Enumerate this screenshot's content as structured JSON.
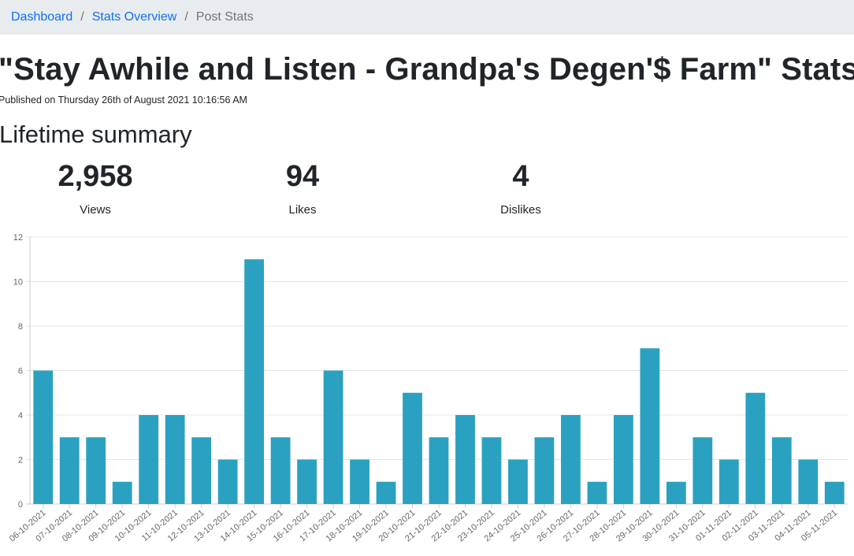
{
  "breadcrumb": {
    "items": [
      {
        "label": "Dashboard",
        "link": true
      },
      {
        "label": "Stats Overview",
        "link": true
      },
      {
        "label": "Post Stats",
        "link": false
      }
    ],
    "separator": "/"
  },
  "page": {
    "title": "\"Stay Awhile and Listen - Grandpa's Degen'$ Farm\" Stats",
    "published": "Published on Thursday 26th of August 2021 10:16:56 AM"
  },
  "summary": {
    "heading": "Lifetime summary",
    "stats": [
      {
        "value": "2,958",
        "label": "Views"
      },
      {
        "value": "94",
        "label": "Likes"
      },
      {
        "value": "4",
        "label": "Dislikes"
      }
    ]
  },
  "colors": {
    "bar": "#2aa1c0",
    "grid": "#e5e5e5",
    "breadcrumb_bg": "#e9ecef",
    "link": "#0d6efd"
  },
  "chart_data": {
    "type": "bar",
    "title": "",
    "xlabel": "",
    "ylabel": "",
    "ylim": [
      0,
      12
    ],
    "yticks": [
      0,
      2,
      4,
      6,
      8,
      10,
      12
    ],
    "grid": true,
    "categories": [
      "06-10-2021",
      "07-10-2021",
      "08-10-2021",
      "09-10-2021",
      "10-10-2021",
      "11-10-2021",
      "12-10-2021",
      "13-10-2021",
      "14-10-2021",
      "15-10-2021",
      "16-10-2021",
      "17-10-2021",
      "18-10-2021",
      "19-10-2021",
      "20-10-2021",
      "21-10-2021",
      "22-10-2021",
      "23-10-2021",
      "24-10-2021",
      "25-10-2021",
      "26-10-2021",
      "27-10-2021",
      "28-10-2021",
      "29-10-2021",
      "30-10-2021",
      "31-10-2021",
      "01-11-2021",
      "02-11-2021",
      "03-11-2021",
      "04-11-2021",
      "05-11-2021"
    ],
    "values": [
      6,
      3,
      3,
      1,
      4,
      4,
      3,
      2,
      11,
      3,
      2,
      6,
      2,
      1,
      5,
      3,
      4,
      3,
      2,
      3,
      4,
      1,
      4,
      7,
      1,
      3,
      2,
      5,
      3,
      2,
      1
    ]
  }
}
